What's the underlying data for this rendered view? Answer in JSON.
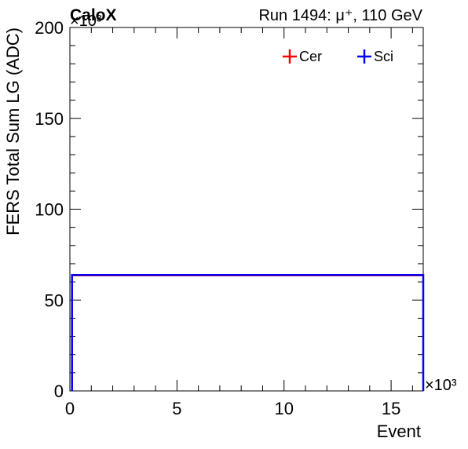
{
  "header": {
    "experiment": "CaloX",
    "run_info": "Run 1494:   μ⁺, 110 GeV"
  },
  "chart_data": {
    "type": "line",
    "xlabel": "Event",
    "ylabel": "FERS Total Sum LG (ADC)",
    "x_multiplier": "×10³",
    "y_multiplier": "×10³",
    "xlim": [
      0,
      16.5
    ],
    "ylim": [
      0,
      200
    ],
    "x_ticks": [
      0,
      5,
      10,
      15
    ],
    "y_ticks": [
      0,
      50,
      100,
      150,
      200
    ],
    "legend_position": "top-right",
    "series": [
      {
        "name": "Cer",
        "color": "#ff0000",
        "x_range": [
          0.1,
          16.5
        ],
        "value": 63.5
      },
      {
        "name": "Sci",
        "color": "#0000ff",
        "x_range": [
          0.1,
          16.5
        ],
        "value": 63.8
      }
    ]
  }
}
